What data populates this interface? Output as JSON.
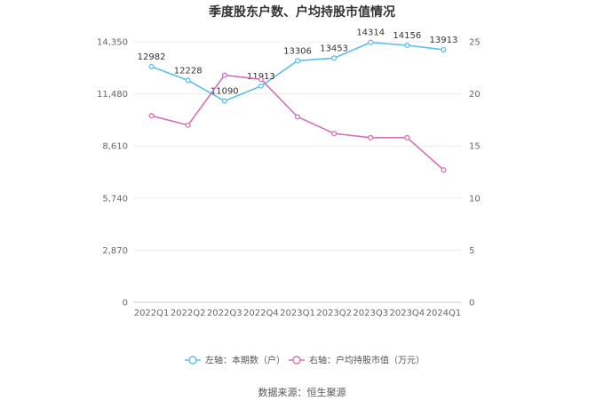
{
  "chart_data": {
    "type": "line",
    "title": "季度股东户数、户均持股市值情况",
    "categories": [
      "2022Q1",
      "2022Q2",
      "2022Q3",
      "2022Q4",
      "2023Q1",
      "2023Q2",
      "2023Q3",
      "2023Q4",
      "2024Q1"
    ],
    "left_axis": {
      "ticks": [
        "0",
        "2,870",
        "5,740",
        "8,610",
        "11,480",
        "14,350"
      ],
      "ylim": [
        0,
        14350
      ]
    },
    "right_axis": {
      "ticks": [
        "0",
        "5",
        "10",
        "15",
        "20",
        "25"
      ],
      "ylim": [
        0,
        25
      ]
    },
    "series": [
      {
        "name": "左轴：本期数（户）",
        "axis": "left",
        "color": "#5bc0eb",
        "values": [
          12982,
          12228,
          11090,
          11913,
          13306,
          13453,
          14314,
          14156,
          13913
        ],
        "labels": [
          "12982",
          "12228",
          "11090",
          "11913",
          "13306",
          "13453",
          "14314",
          "14156",
          "13913"
        ]
      },
      {
        "name": "右轴：户均持股市值（万元）",
        "axis": "right",
        "color": "#d670b8",
        "values": [
          17.9,
          17.0,
          21.8,
          21.4,
          17.8,
          16.2,
          15.8,
          15.8,
          12.7
        ]
      }
    ],
    "grid": true,
    "legend": "bottom"
  },
  "source": "数据来源：恒生聚源"
}
